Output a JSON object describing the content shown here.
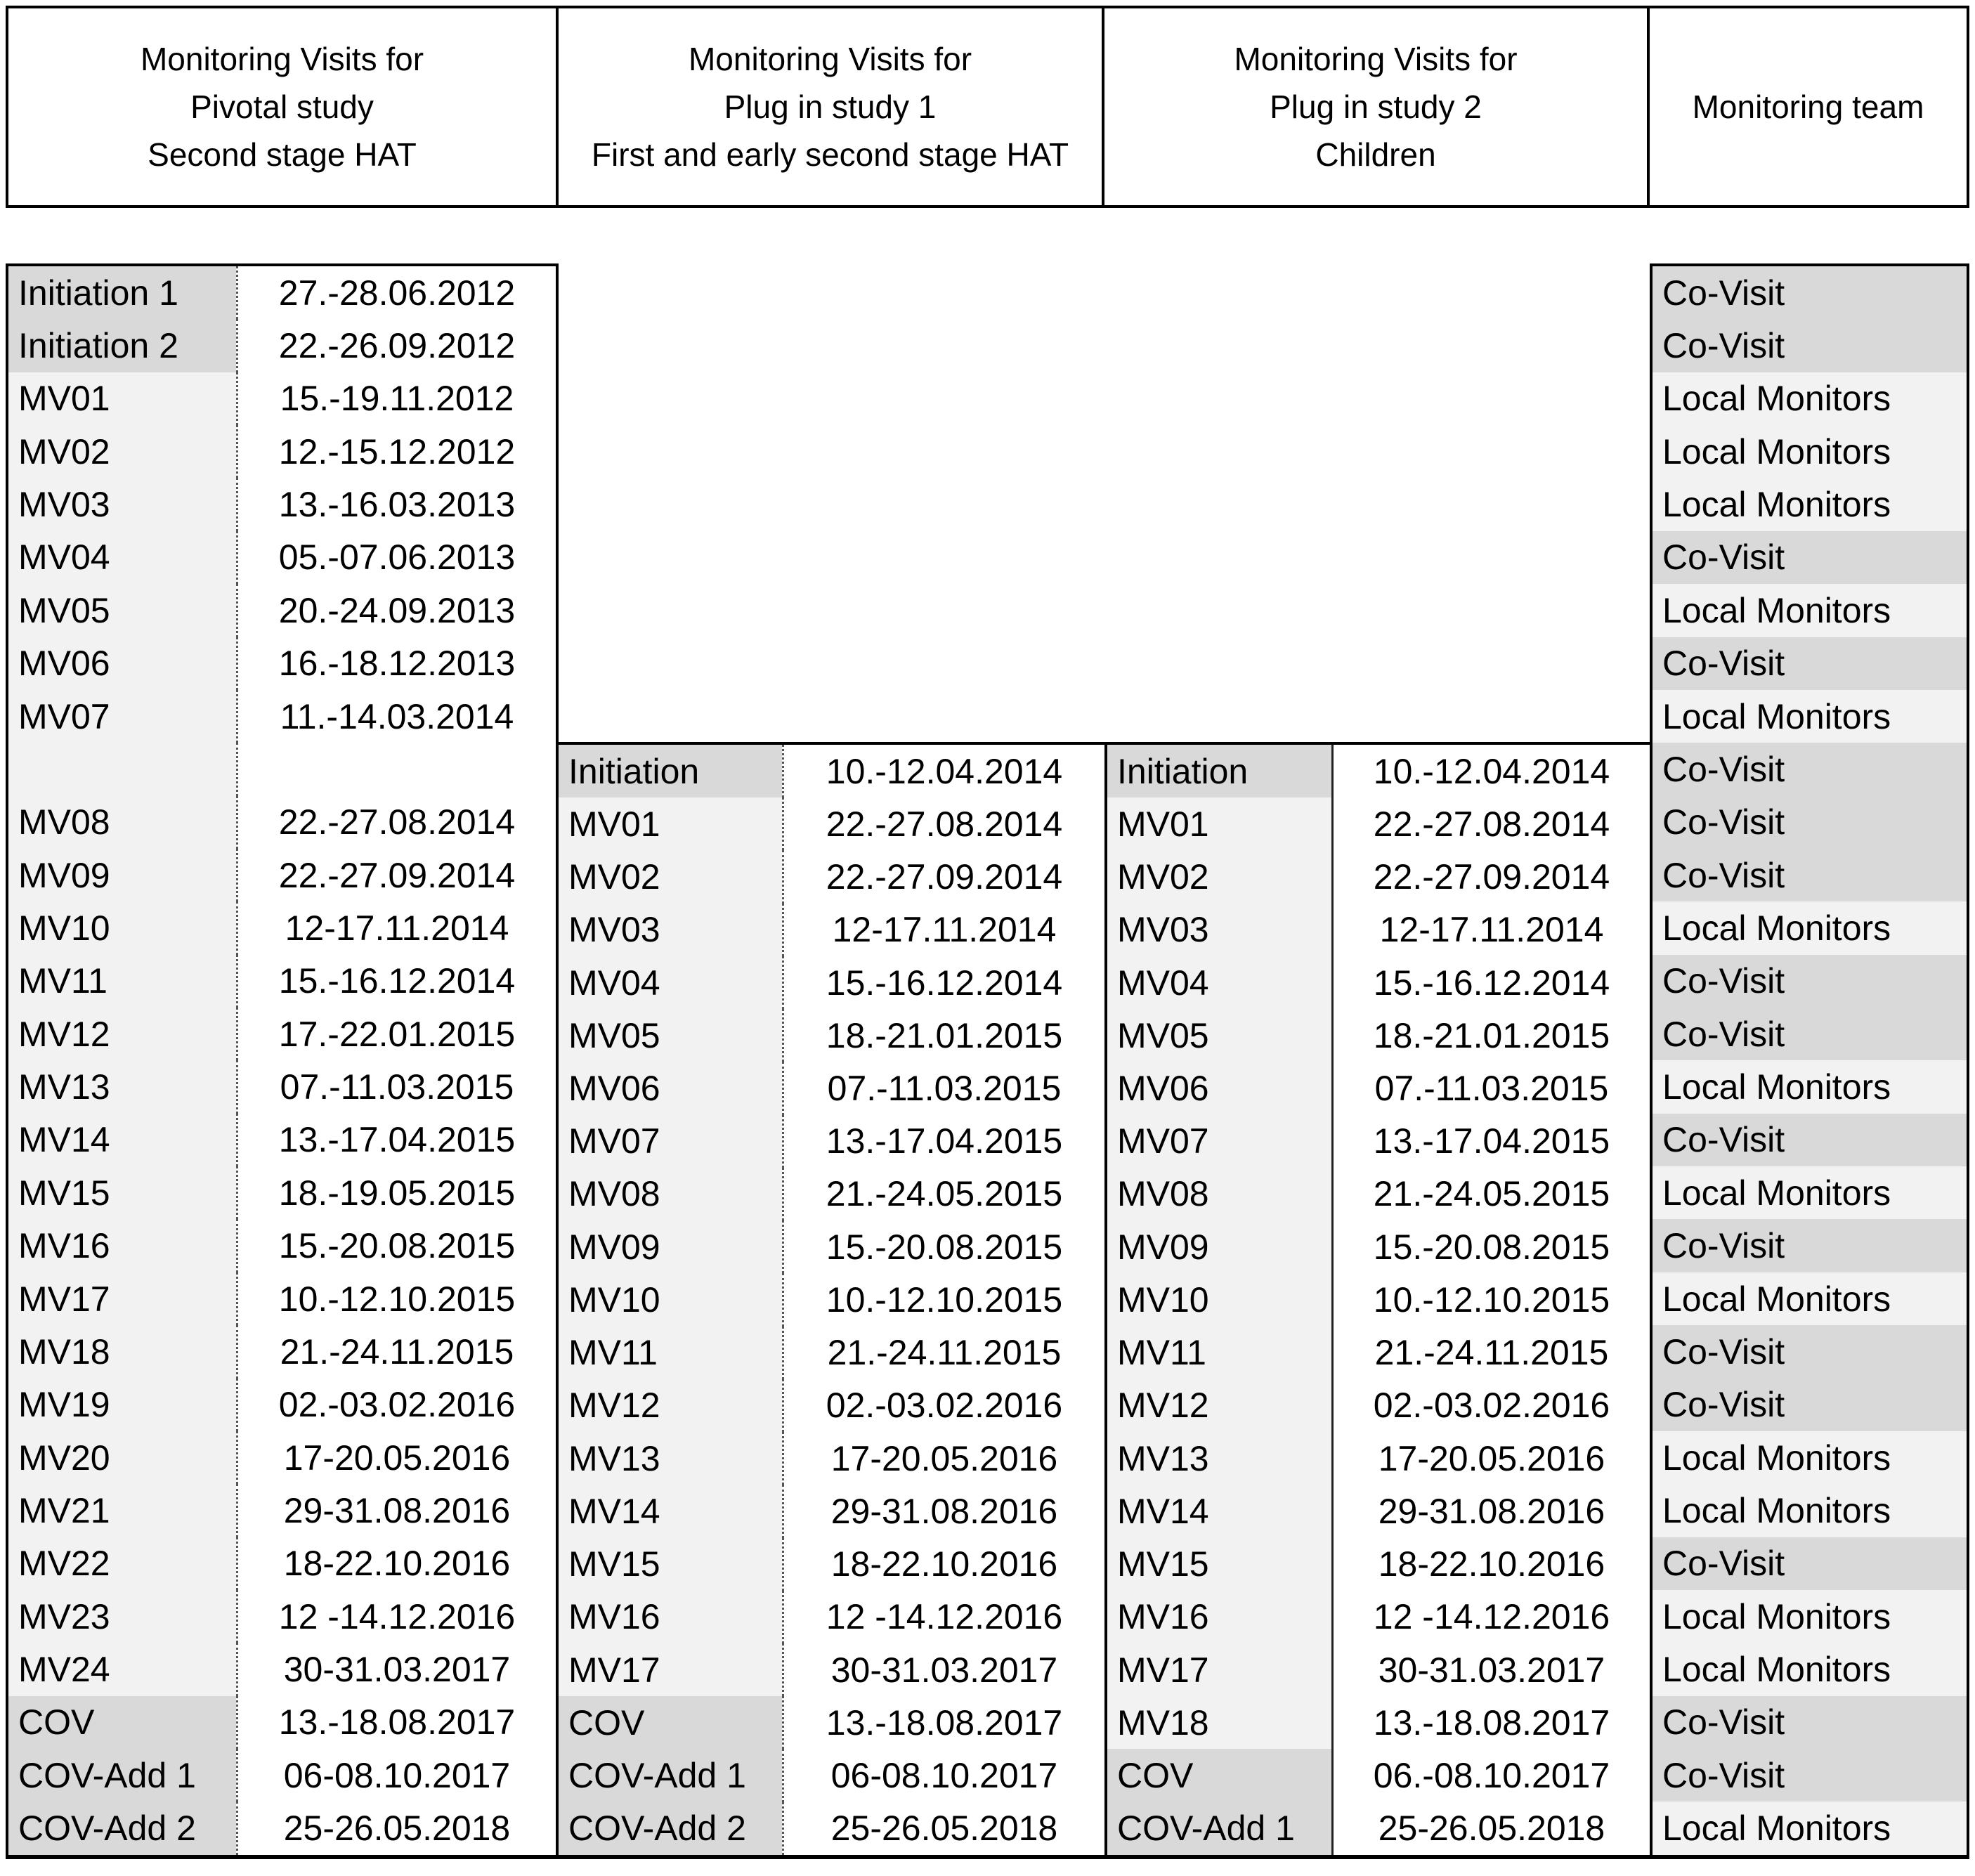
{
  "header": {
    "cols": [
      {
        "lines": [
          "Monitoring Visits for",
          "Pivotal study",
          "Second stage HAT"
        ]
      },
      {
        "lines": [
          "Monitoring Visits for",
          "Plug in study 1",
          "First and early second stage HAT"
        ]
      },
      {
        "lines": [
          "Monitoring Visits for",
          "Plug in study 2",
          "Children"
        ]
      },
      {
        "lines": [
          "Monitoring team"
        ]
      }
    ]
  },
  "colors": {
    "row_dark": "#d9d9d9",
    "row_light": "#f2f2f2",
    "border": "#000000",
    "cell_white": "#ffffff"
  },
  "tables": {
    "pivotal": {
      "rows": [
        {
          "label": "Initiation 1",
          "date": "27.-28.06.2012",
          "shade": "dark"
        },
        {
          "label": "Initiation 2",
          "date": "22.-26.09.2012",
          "shade": "dark"
        },
        {
          "label": "MV01",
          "date": "15.-19.11.2012",
          "shade": "light"
        },
        {
          "label": "MV02",
          "date": "12.-15.12.2012",
          "shade": "light"
        },
        {
          "label": "MV03",
          "date": "13.-16.03.2013",
          "shade": "light"
        },
        {
          "label": "MV04",
          "date": "05.-07.06.2013",
          "shade": "light"
        },
        {
          "label": "MV05",
          "date": "20.-24.09.2013",
          "shade": "light"
        },
        {
          "label": "MV06",
          "date": "16.-18.12.2013",
          "shade": "light"
        },
        {
          "label": "MV07",
          "date": "11.-14.03.2014",
          "shade": "light"
        },
        {
          "label": "",
          "date": "",
          "shade": "light"
        },
        {
          "label": "MV08",
          "date": "22.-27.08.2014",
          "shade": "light"
        },
        {
          "label": "MV09",
          "date": "22.-27.09.2014",
          "shade": "light"
        },
        {
          "label": "MV10",
          "date": "12-17.11.2014",
          "shade": "light"
        },
        {
          "label": "MV11",
          "date": "15.-16.12.2014",
          "shade": "light"
        },
        {
          "label": "MV12",
          "date": "17.-22.01.2015",
          "shade": "light"
        },
        {
          "label": "MV13",
          "date": "07.-11.03.2015",
          "shade": "light"
        },
        {
          "label": "MV14",
          "date": "13.-17.04.2015",
          "shade": "light"
        },
        {
          "label": "MV15",
          "date": "18.-19.05.2015",
          "shade": "light"
        },
        {
          "label": "MV16",
          "date": "15.-20.08.2015",
          "shade": "light"
        },
        {
          "label": "MV17",
          "date": "10.-12.10.2015",
          "shade": "light"
        },
        {
          "label": "MV18",
          "date": "21.-24.11.2015",
          "shade": "light"
        },
        {
          "label": "MV19",
          "date": "02.-03.02.2016",
          "shade": "light"
        },
        {
          "label": "MV20",
          "date": "17-20.05.2016",
          "shade": "light"
        },
        {
          "label": "MV21",
          "date": "29-31.08.2016",
          "shade": "light"
        },
        {
          "label": "MV22",
          "date": "18-22.10.2016",
          "shade": "light"
        },
        {
          "label": "MV23",
          "date": "12 -14.12.2016",
          "shade": "light"
        },
        {
          "label": "MV24",
          "date": "30-31.03.2017",
          "shade": "light"
        },
        {
          "label": "COV",
          "date": "13.-18.08.2017",
          "shade": "dark"
        },
        {
          "label": "COV-Add 1",
          "date": "06-08.10.2017",
          "shade": "dark"
        },
        {
          "label": "COV-Add 2",
          "date": "25-26.05.2018",
          "shade": "dark"
        }
      ]
    },
    "plug1": {
      "rows": [
        {
          "label": "Initiation",
          "date": "10.-12.04.2014",
          "shade": "dark"
        },
        {
          "label": "MV01",
          "date": "22.-27.08.2014",
          "shade": "light"
        },
        {
          "label": "MV02",
          "date": "22.-27.09.2014",
          "shade": "light"
        },
        {
          "label": "MV03",
          "date": "12-17.11.2014",
          "shade": "light"
        },
        {
          "label": "MV04",
          "date": "15.-16.12.2014",
          "shade": "light"
        },
        {
          "label": "MV05",
          "date": "18.-21.01.2015",
          "shade": "light"
        },
        {
          "label": "MV06",
          "date": "07.-11.03.2015",
          "shade": "light"
        },
        {
          "label": "MV07",
          "date": "13.-17.04.2015",
          "shade": "light"
        },
        {
          "label": "MV08",
          "date": "21.-24.05.2015",
          "shade": "light"
        },
        {
          "label": "MV09",
          "date": "15.-20.08.2015",
          "shade": "light"
        },
        {
          "label": "MV10",
          "date": "10.-12.10.2015",
          "shade": "light"
        },
        {
          "label": "MV11",
          "date": "21.-24.11.2015",
          "shade": "light"
        },
        {
          "label": "MV12",
          "date": "02.-03.02.2016",
          "shade": "light"
        },
        {
          "label": "MV13",
          "date": "17-20.05.2016",
          "shade": "light"
        },
        {
          "label": "MV14",
          "date": "29-31.08.2016",
          "shade": "light"
        },
        {
          "label": "MV15",
          "date": "18-22.10.2016",
          "shade": "light"
        },
        {
          "label": "MV16",
          "date": "12 -14.12.2016",
          "shade": "light"
        },
        {
          "label": "MV17",
          "date": "30-31.03.2017",
          "shade": "light"
        },
        {
          "label": "COV",
          "date": "13.-18.08.2017",
          "shade": "dark"
        },
        {
          "label": "COV-Add 1",
          "date": "06-08.10.2017",
          "shade": "dark"
        },
        {
          "label": "COV-Add 2",
          "date": "25-26.05.2018",
          "shade": "dark"
        }
      ]
    },
    "plug2": {
      "rows": [
        {
          "label": "Initiation",
          "date": "10.-12.04.2014",
          "shade": "dark"
        },
        {
          "label": "MV01",
          "date": "22.-27.08.2014",
          "shade": "light"
        },
        {
          "label": "MV02",
          "date": "22.-27.09.2014",
          "shade": "light"
        },
        {
          "label": "MV03",
          "date": "12-17.11.2014",
          "shade": "light"
        },
        {
          "label": "MV04",
          "date": "15.-16.12.2014",
          "shade": "light"
        },
        {
          "label": "MV05",
          "date": "18.-21.01.2015",
          "shade": "light"
        },
        {
          "label": "MV06",
          "date": "07.-11.03.2015",
          "shade": "light"
        },
        {
          "label": "MV07",
          "date": "13.-17.04.2015",
          "shade": "light"
        },
        {
          "label": "MV08",
          "date": "21.-24.05.2015",
          "shade": "light"
        },
        {
          "label": "MV09",
          "date": "15.-20.08.2015",
          "shade": "light"
        },
        {
          "label": "MV10",
          "date": "10.-12.10.2015",
          "shade": "light"
        },
        {
          "label": "MV11",
          "date": "21.-24.11.2015",
          "shade": "light"
        },
        {
          "label": "MV12",
          "date": "02.-03.02.2016",
          "shade": "light"
        },
        {
          "label": "MV13",
          "date": "17-20.05.2016",
          "shade": "light"
        },
        {
          "label": "MV14",
          "date": "29-31.08.2016",
          "shade": "light"
        },
        {
          "label": "MV15",
          "date": "18-22.10.2016",
          "shade": "light"
        },
        {
          "label": "MV16",
          "date": "12 -14.12.2016",
          "shade": "light"
        },
        {
          "label": "MV17",
          "date": "30-31.03.2017",
          "shade": "light"
        },
        {
          "label": "MV18",
          "date": "13.-18.08.2017",
          "shade": "light"
        },
        {
          "label": "COV",
          "date": "06.-08.10.2017",
          "shade": "dark"
        },
        {
          "label": "COV-Add 1",
          "date": "25-26.05.2018",
          "shade": "dark"
        }
      ]
    },
    "team": {
      "rows": [
        {
          "label": "Co-Visit",
          "shade": "dark"
        },
        {
          "label": "Co-Visit",
          "shade": "dark"
        },
        {
          "label": "Local Monitors",
          "shade": "light"
        },
        {
          "label": "Local Monitors",
          "shade": "light"
        },
        {
          "label": "Local Monitors",
          "shade": "light"
        },
        {
          "label": "Co-Visit",
          "shade": "dark"
        },
        {
          "label": "Local Monitors",
          "shade": "light"
        },
        {
          "label": "Co-Visit",
          "shade": "dark"
        },
        {
          "label": "Local Monitors",
          "shade": "light"
        },
        {
          "label": "Co-Visit",
          "shade": "dark"
        },
        {
          "label": "Co-Visit",
          "shade": "dark"
        },
        {
          "label": "Co-Visit",
          "shade": "dark"
        },
        {
          "label": "Local Monitors",
          "shade": "light"
        },
        {
          "label": "Co-Visit",
          "shade": "dark"
        },
        {
          "label": "Co-Visit",
          "shade": "dark"
        },
        {
          "label": "Local Monitors",
          "shade": "light"
        },
        {
          "label": "Co-Visit",
          "shade": "dark"
        },
        {
          "label": "Local Monitors",
          "shade": "light"
        },
        {
          "label": "Co-Visit",
          "shade": "dark"
        },
        {
          "label": "Local Monitors",
          "shade": "light"
        },
        {
          "label": "Co-Visit",
          "shade": "dark"
        },
        {
          "label": "Co-Visit",
          "shade": "dark"
        },
        {
          "label": "Local Monitors",
          "shade": "light"
        },
        {
          "label": "Local Monitors",
          "shade": "light"
        },
        {
          "label": "Co-Visit",
          "shade": "dark"
        },
        {
          "label": "Local Monitors",
          "shade": "light"
        },
        {
          "label": "Local Monitors",
          "shade": "light"
        },
        {
          "label": "Co-Visit",
          "shade": "dark"
        },
        {
          "label": "Co-Visit",
          "shade": "dark"
        },
        {
          "label": "Local Monitors",
          "shade": "light"
        }
      ]
    }
  }
}
